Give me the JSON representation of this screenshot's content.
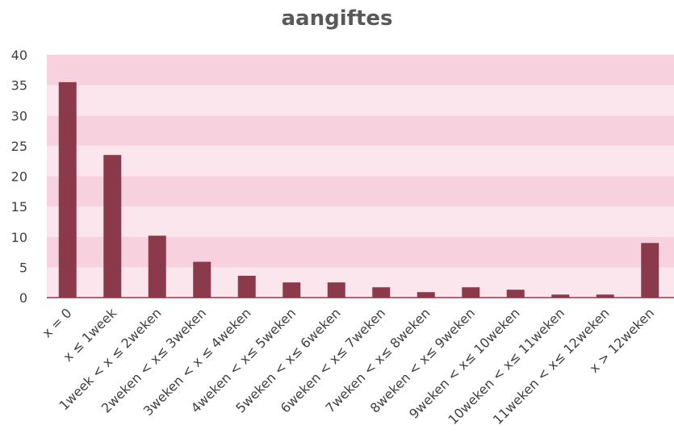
{
  "colors": {
    "bar": "#8b3a4b",
    "band_light": "#fce6ee",
    "band_dark": "#f7d1de",
    "axis": "#8b3a4b",
    "text": "#404040",
    "title": "#595959"
  },
  "chart_data": {
    "type": "bar",
    "title": "aangiftes",
    "xlabel": "",
    "ylabel": "",
    "ylim": [
      0,
      40
    ],
    "yticks": [
      "0",
      "5",
      "10",
      "15",
      "20",
      "25",
      "30",
      "35",
      "40"
    ],
    "grid": "horizontal alternating bands",
    "legend": "none",
    "categories": [
      "x = 0",
      "x ≤ 1week",
      "1week < x ≤ 2weken",
      "2weken < x≤ 3weken",
      "3weken < x ≤ 4weken",
      "4weken < x≤ 5weken",
      "5weken < x≤ 6weken",
      "6weken < x≤ 7weken",
      "7weken < x≤ 8weken",
      "8weken < x≤ 9weken",
      "9weken < x≤ 10weken",
      "10weken < x≤ 11weken",
      "11weken < x≤ 12weken",
      "x > 12weken"
    ],
    "values": [
      35.5,
      23.5,
      10.2,
      5.9,
      3.6,
      2.5,
      2.5,
      1.7,
      0.9,
      1.7,
      1.3,
      0.5,
      0.5,
      9.0
    ]
  }
}
